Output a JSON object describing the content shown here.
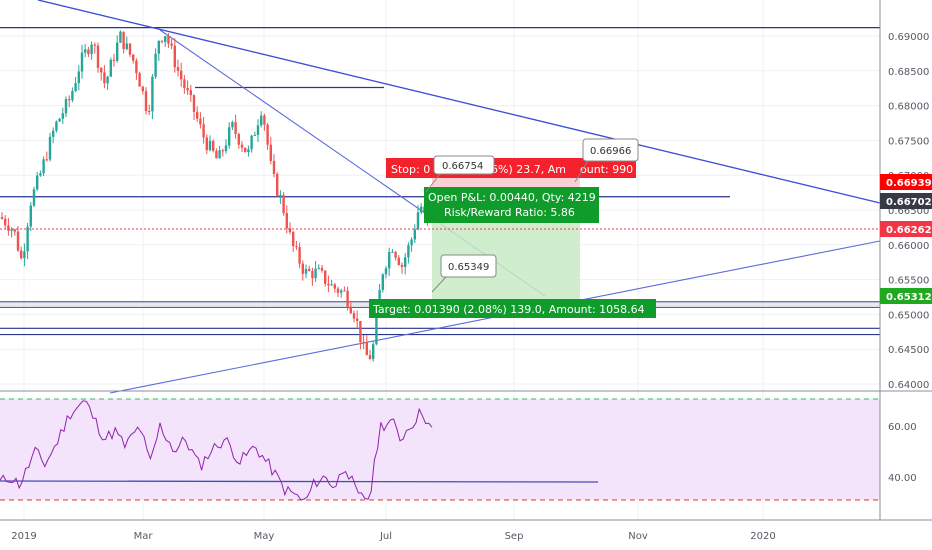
{
  "chart_data": [
    {
      "type": "candlestick",
      "y_ticks": [
        "0.69000",
        "0.68500",
        "0.68000",
        "0.67500",
        "0.67000",
        "0.66500",
        "0.66000",
        "0.65500",
        "0.65000",
        "0.64500",
        "0.64000"
      ],
      "x_ticks": [
        "2019",
        "Mar",
        "May",
        "Jul",
        "Sep",
        "Nov",
        "2020"
      ],
      "ylim": [
        0.6395,
        0.693
      ],
      "price_tags": [
        {
          "label": "0.66939",
          "color": "#ff0000"
        },
        {
          "label": "0.66702",
          "color": "#363a45"
        },
        {
          "label": "0.66262",
          "color": "#f23645"
        },
        {
          "label": "0.65312",
          "color": "#21a821"
        }
      ],
      "horizontal_levels": [
        0.6912,
        0.6826,
        0.6669,
        0.6518,
        0.651,
        0.648,
        0.6471
      ],
      "trade": {
        "stop_text": "Stop: 0.00... (...36%) 23.7, Amount: 990",
        "stop_label": "Stop: 0",
        "stop_pct": "36%) 23.7, Am",
        "stop_amount": "ount: 990",
        "open_text": "Open P&L: 0.00440, Qty: 4219",
        "rr_text": "Risk/Reward Ratio: 5.86",
        "target_text": "Target: 0.01390 (2.08%) 139.0, Amount: 1058.64"
      },
      "annotations": [
        "0.66754",
        "0.66966",
        "0.65349"
      ],
      "close": 0.66262
    },
    {
      "type": "line",
      "name": "rsi",
      "y_ticks": [
        "60.00",
        "40.00"
      ],
      "ylim": [
        25,
        75
      ],
      "band": [
        30,
        70
      ],
      "support_line": 37.2
    }
  ]
}
